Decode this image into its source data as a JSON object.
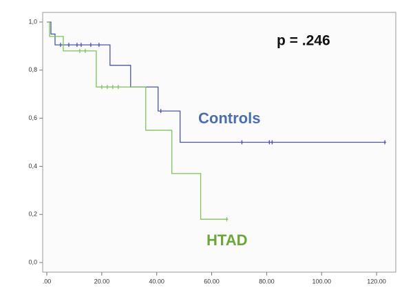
{
  "chart_data": {
    "type": "kaplan-meier",
    "annotation": "p = .246",
    "xlim": [
      -1.5,
      127
    ],
    "ylim": [
      -0.04,
      1.04
    ],
    "xticks": [
      {
        "value": 0,
        "label": ".00"
      },
      {
        "value": 20,
        "label": "20.00"
      },
      {
        "value": 40,
        "label": "40.00"
      },
      {
        "value": 60,
        "label": "60.00"
      },
      {
        "value": 80,
        "label": "80.00"
      },
      {
        "value": 100,
        "label": "100.00"
      },
      {
        "value": 120,
        "label": "120.00"
      }
    ],
    "yticks": [
      {
        "value": 0,
        "label": "0,0"
      },
      {
        "value": 0.2,
        "label": "0,2"
      },
      {
        "value": 0.4,
        "label": "0,4"
      },
      {
        "value": 0.6,
        "label": "0,6"
      },
      {
        "value": 0.8,
        "label": "0,8"
      },
      {
        "value": 1,
        "label": "1,0"
      }
    ],
    "series": [
      {
        "name": "Controls",
        "color": "#4a55a8",
        "label_color": "#4a6db0",
        "x": [
          0,
          1.5,
          3,
          23,
          30.5,
          40.5,
          48.5,
          123
        ],
        "values": [
          1,
          0.95,
          0.905,
          0.82,
          0.73,
          0.63,
          0.5,
          0.5
        ],
        "censored_x": [
          5,
          8,
          11,
          12.5,
          16,
          19,
          41.5,
          71,
          81,
          82,
          123
        ],
        "censored_values": [
          0.905,
          0.905,
          0.905,
          0.905,
          0.905,
          0.905,
          0.63,
          0.5,
          0.5,
          0.5,
          0.5
        ]
      },
      {
        "name": "HTAD",
        "color": "#7cc35a",
        "label_color": "#6aa63a",
        "x": [
          0,
          1,
          6,
          18,
          36,
          45.5,
          56,
          65.5
        ],
        "values": [
          1,
          0.94,
          0.88,
          0.73,
          0.55,
          0.37,
          0.18,
          0.18
        ],
        "censored_x": [
          12,
          14,
          20,
          22,
          24,
          26,
          65.5
        ],
        "censored_values": [
          0.88,
          0.88,
          0.73,
          0.73,
          0.73,
          0.73,
          0.18
        ]
      }
    ]
  }
}
